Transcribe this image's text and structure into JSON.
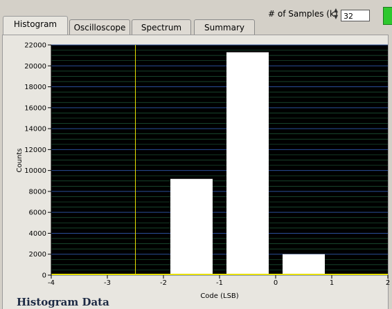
{
  "tabs": [
    {
      "label": "Histogram",
      "active": true
    },
    {
      "label": "Oscilloscope",
      "active": false
    },
    {
      "label": "Spectrum",
      "active": false
    },
    {
      "label": "Summary",
      "active": false
    }
  ],
  "samples": {
    "label": "# of Samples (k)",
    "value": "32",
    "icon": "spin-arrows-icon",
    "indicator_color": "#2ec82e"
  },
  "section_title": "Histogram Data",
  "chart_data": {
    "type": "bar",
    "xlabel": "Code (LSB)",
    "ylabel": "Counts",
    "xlim": [
      -4,
      2
    ],
    "ylim": [
      0,
      22000
    ],
    "x_ticks": [
      -4,
      -3,
      -2,
      -1,
      0,
      1,
      2
    ],
    "y_ticks": [
      0,
      2000,
      4000,
      6000,
      8000,
      10000,
      12000,
      14000,
      16000,
      18000,
      20000,
      22000
    ],
    "bars": [
      {
        "x0": -2,
        "x1": -1,
        "value": 9200
      },
      {
        "x0": -1,
        "x1": 0,
        "value": 21300
      },
      {
        "x0": 0,
        "x1": 1,
        "value": 2000
      }
    ],
    "cursor_x": -2.5,
    "grid": true,
    "plot_background": "#000000",
    "bar_color": "#ffffff",
    "cursor_color": "#e8e000",
    "grid_color": "#1f5a3a"
  }
}
